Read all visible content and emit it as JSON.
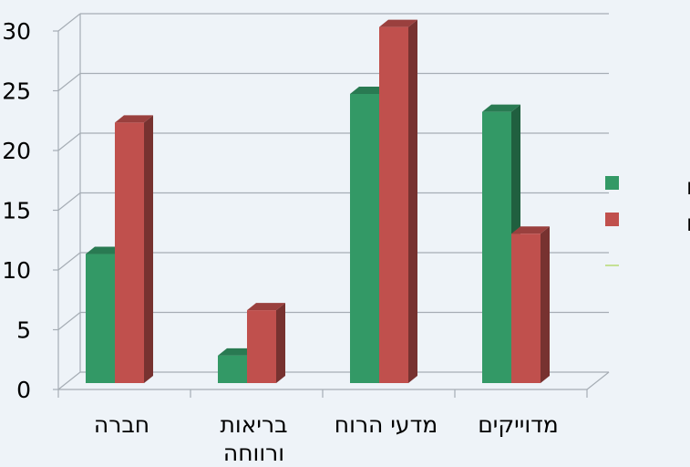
{
  "chart_data": {
    "type": "bar",
    "categories": [
      "חברה",
      "בריאות ורווחה",
      "מדעי הרוח",
      "מדוייקים"
    ],
    "category_lines": [
      [
        "חברה"
      ],
      [
        "בריאות",
        "ורווחה"
      ],
      [
        "מדעי הרוח"
      ],
      [
        "מדוייקים"
      ]
    ],
    "series": [
      {
        "name": "גברים",
        "values": [
          10.8,
          2.3,
          24.2,
          22.7
        ],
        "color": "#339966"
      },
      {
        "name": "נשים",
        "values": [
          21.8,
          6.1,
          29.8,
          12.5
        ],
        "color": "#c0504d"
      }
    ],
    "yticks": [
      0,
      5,
      10,
      15,
      20,
      25,
      30
    ],
    "ylim": [
      0,
      30
    ],
    "grid": true,
    "legend_position": "right",
    "title": "",
    "xlabel": "",
    "ylabel": ""
  }
}
